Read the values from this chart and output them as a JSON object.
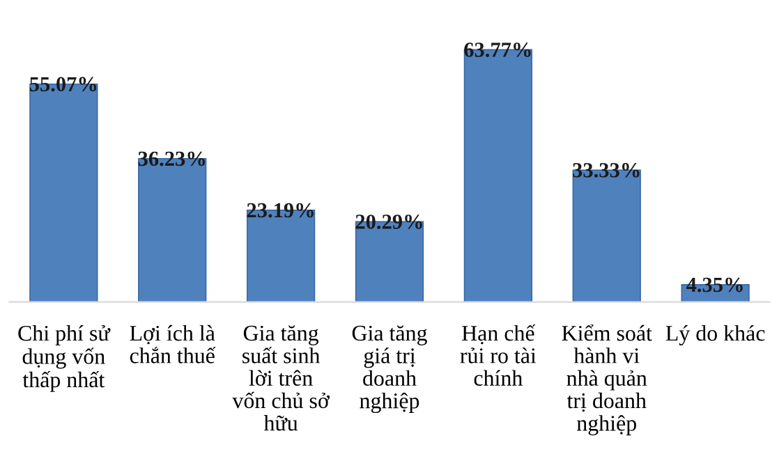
{
  "chart_data": {
    "type": "bar",
    "categories": [
      "Chi phí sử dụng vốn thấp nhất",
      "Lợi ích là chắn thuế",
      "Gia tăng suất sinh lời trên vốn chủ sở hữu",
      "Gia tăng giá trị doanh nghiệp",
      "Hạn chế rủi ro tài chính",
      "Kiểm soát hành vi nhà quản trị doanh nghiệp",
      "Lý do khác"
    ],
    "values": [
      55.07,
      36.23,
      23.19,
      20.29,
      63.77,
      33.33,
      4.35
    ],
    "value_labels": [
      "55.07%",
      "36.23%",
      "23.19%",
      "20.29%",
      "63.77%",
      "33.33%",
      "4.35%"
    ],
    "color": "#4f81bd",
    "grid": false,
    "legend": false
  }
}
